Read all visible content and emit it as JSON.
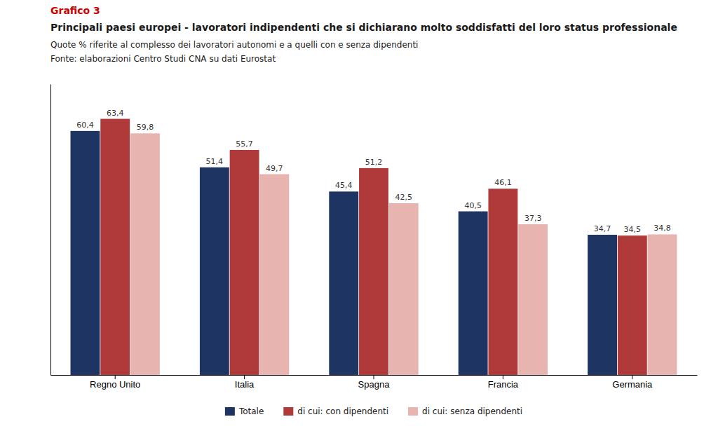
{
  "chart_data": {
    "type": "bar",
    "title": "Principali paesi europei - lavoratori indipendenti che si dichiarano molto soddisfatti del loro status professionale",
    "subtitle": "Quote % riferite al complesso dei lavoratori autonomi e a quelli con e senza dipendenti",
    "annotations": [
      {
        "text": "Grafico 3",
        "color": "#cc0000"
      },
      {
        "text": "Fonte: elaborazioni Centro Studi CNA su dati Eurostat"
      }
    ],
    "categories": [
      "Regno Unito",
      "Italia",
      "Spagna",
      "Francia",
      "Germania"
    ],
    "series": [
      {
        "name": "Totale",
        "color": "#1e3462",
        "values": [
          60.4,
          51.4,
          45.4,
          40.5,
          34.7
        ],
        "value_labels": [
          "60,4",
          "51,4",
          "45,4",
          "40,5",
          "34,7"
        ]
      },
      {
        "name": "di cui: con dipendenti",
        "color": "#b03a3a",
        "values": [
          63.4,
          55.7,
          51.2,
          46.1,
          34.5
        ],
        "value_labels": [
          "63,4",
          "55,7",
          "51,2",
          "46,1",
          "34,5"
        ]
      },
      {
        "name": "di cui: senza dipendenti",
        "color": "#e8b4b0",
        "values": [
          59.8,
          49.7,
          42.5,
          37.3,
          34.8
        ],
        "value_labels": [
          "59,8",
          "49,7",
          "42,5",
          "37,3",
          "34,8"
        ]
      }
    ],
    "ylim": [
      0,
      72
    ],
    "yticks": [],
    "grid": false,
    "legend": "bottom",
    "data_labels": true,
    "tick_labels": "x"
  }
}
